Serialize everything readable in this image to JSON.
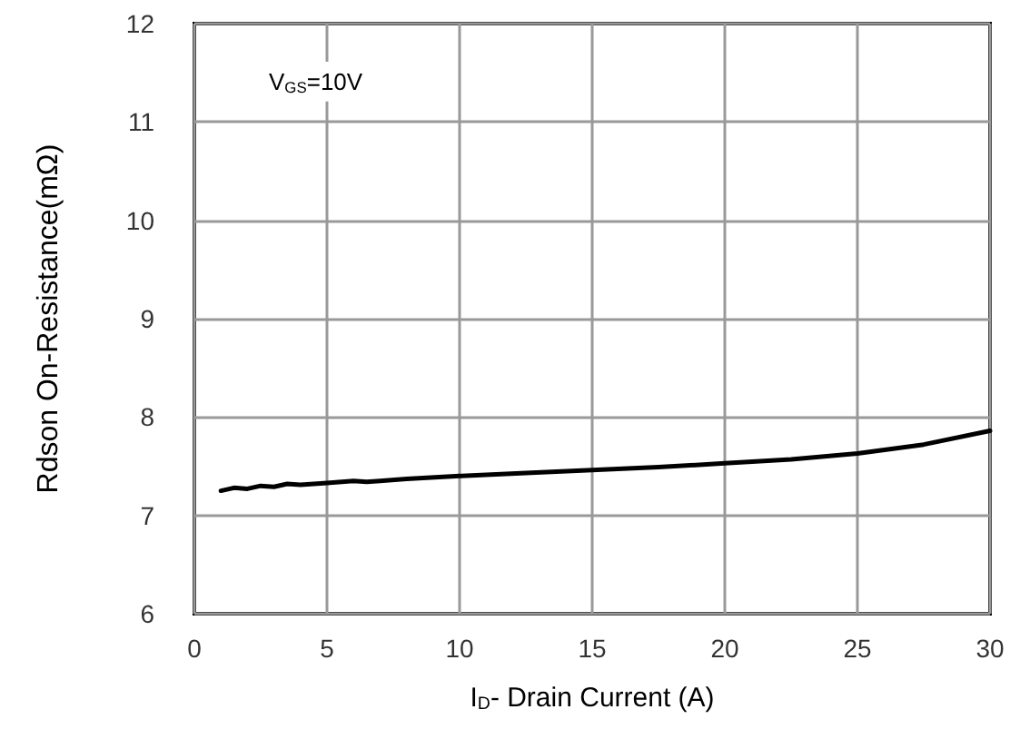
{
  "chart_data": {
    "type": "line",
    "xlabel": "I$_{D}$- Drain Current (A)",
    "ylabel": "Rdson On-Resistance(mΩ)",
    "annotations": [
      "V$_{GS}$=10V"
    ],
    "xlim": [
      0,
      30
    ],
    "xticks": [
      0,
      5,
      10,
      15,
      20,
      25,
      30
    ],
    "ylim": [
      6,
      12
    ],
    "yticks": [
      6,
      7,
      8,
      9,
      10,
      11,
      12
    ],
    "grid": true,
    "marker": "none",
    "line_style": "solid",
    "series": [
      {
        "color": "#000000",
        "x": [
          1,
          1.5,
          2,
          2.5,
          3,
          3.5,
          4,
          5,
          6,
          6.5,
          7,
          8,
          10,
          12.5,
          15,
          17.5,
          20,
          22.5,
          25,
          27.5,
          30
        ],
        "values": [
          7.25,
          7.28,
          7.27,
          7.3,
          7.29,
          7.32,
          7.31,
          7.33,
          7.35,
          7.34,
          7.35,
          7.37,
          7.4,
          7.43,
          7.46,
          7.49,
          7.53,
          7.57,
          7.63,
          7.72,
          7.86
        ]
      }
    ]
  }
}
